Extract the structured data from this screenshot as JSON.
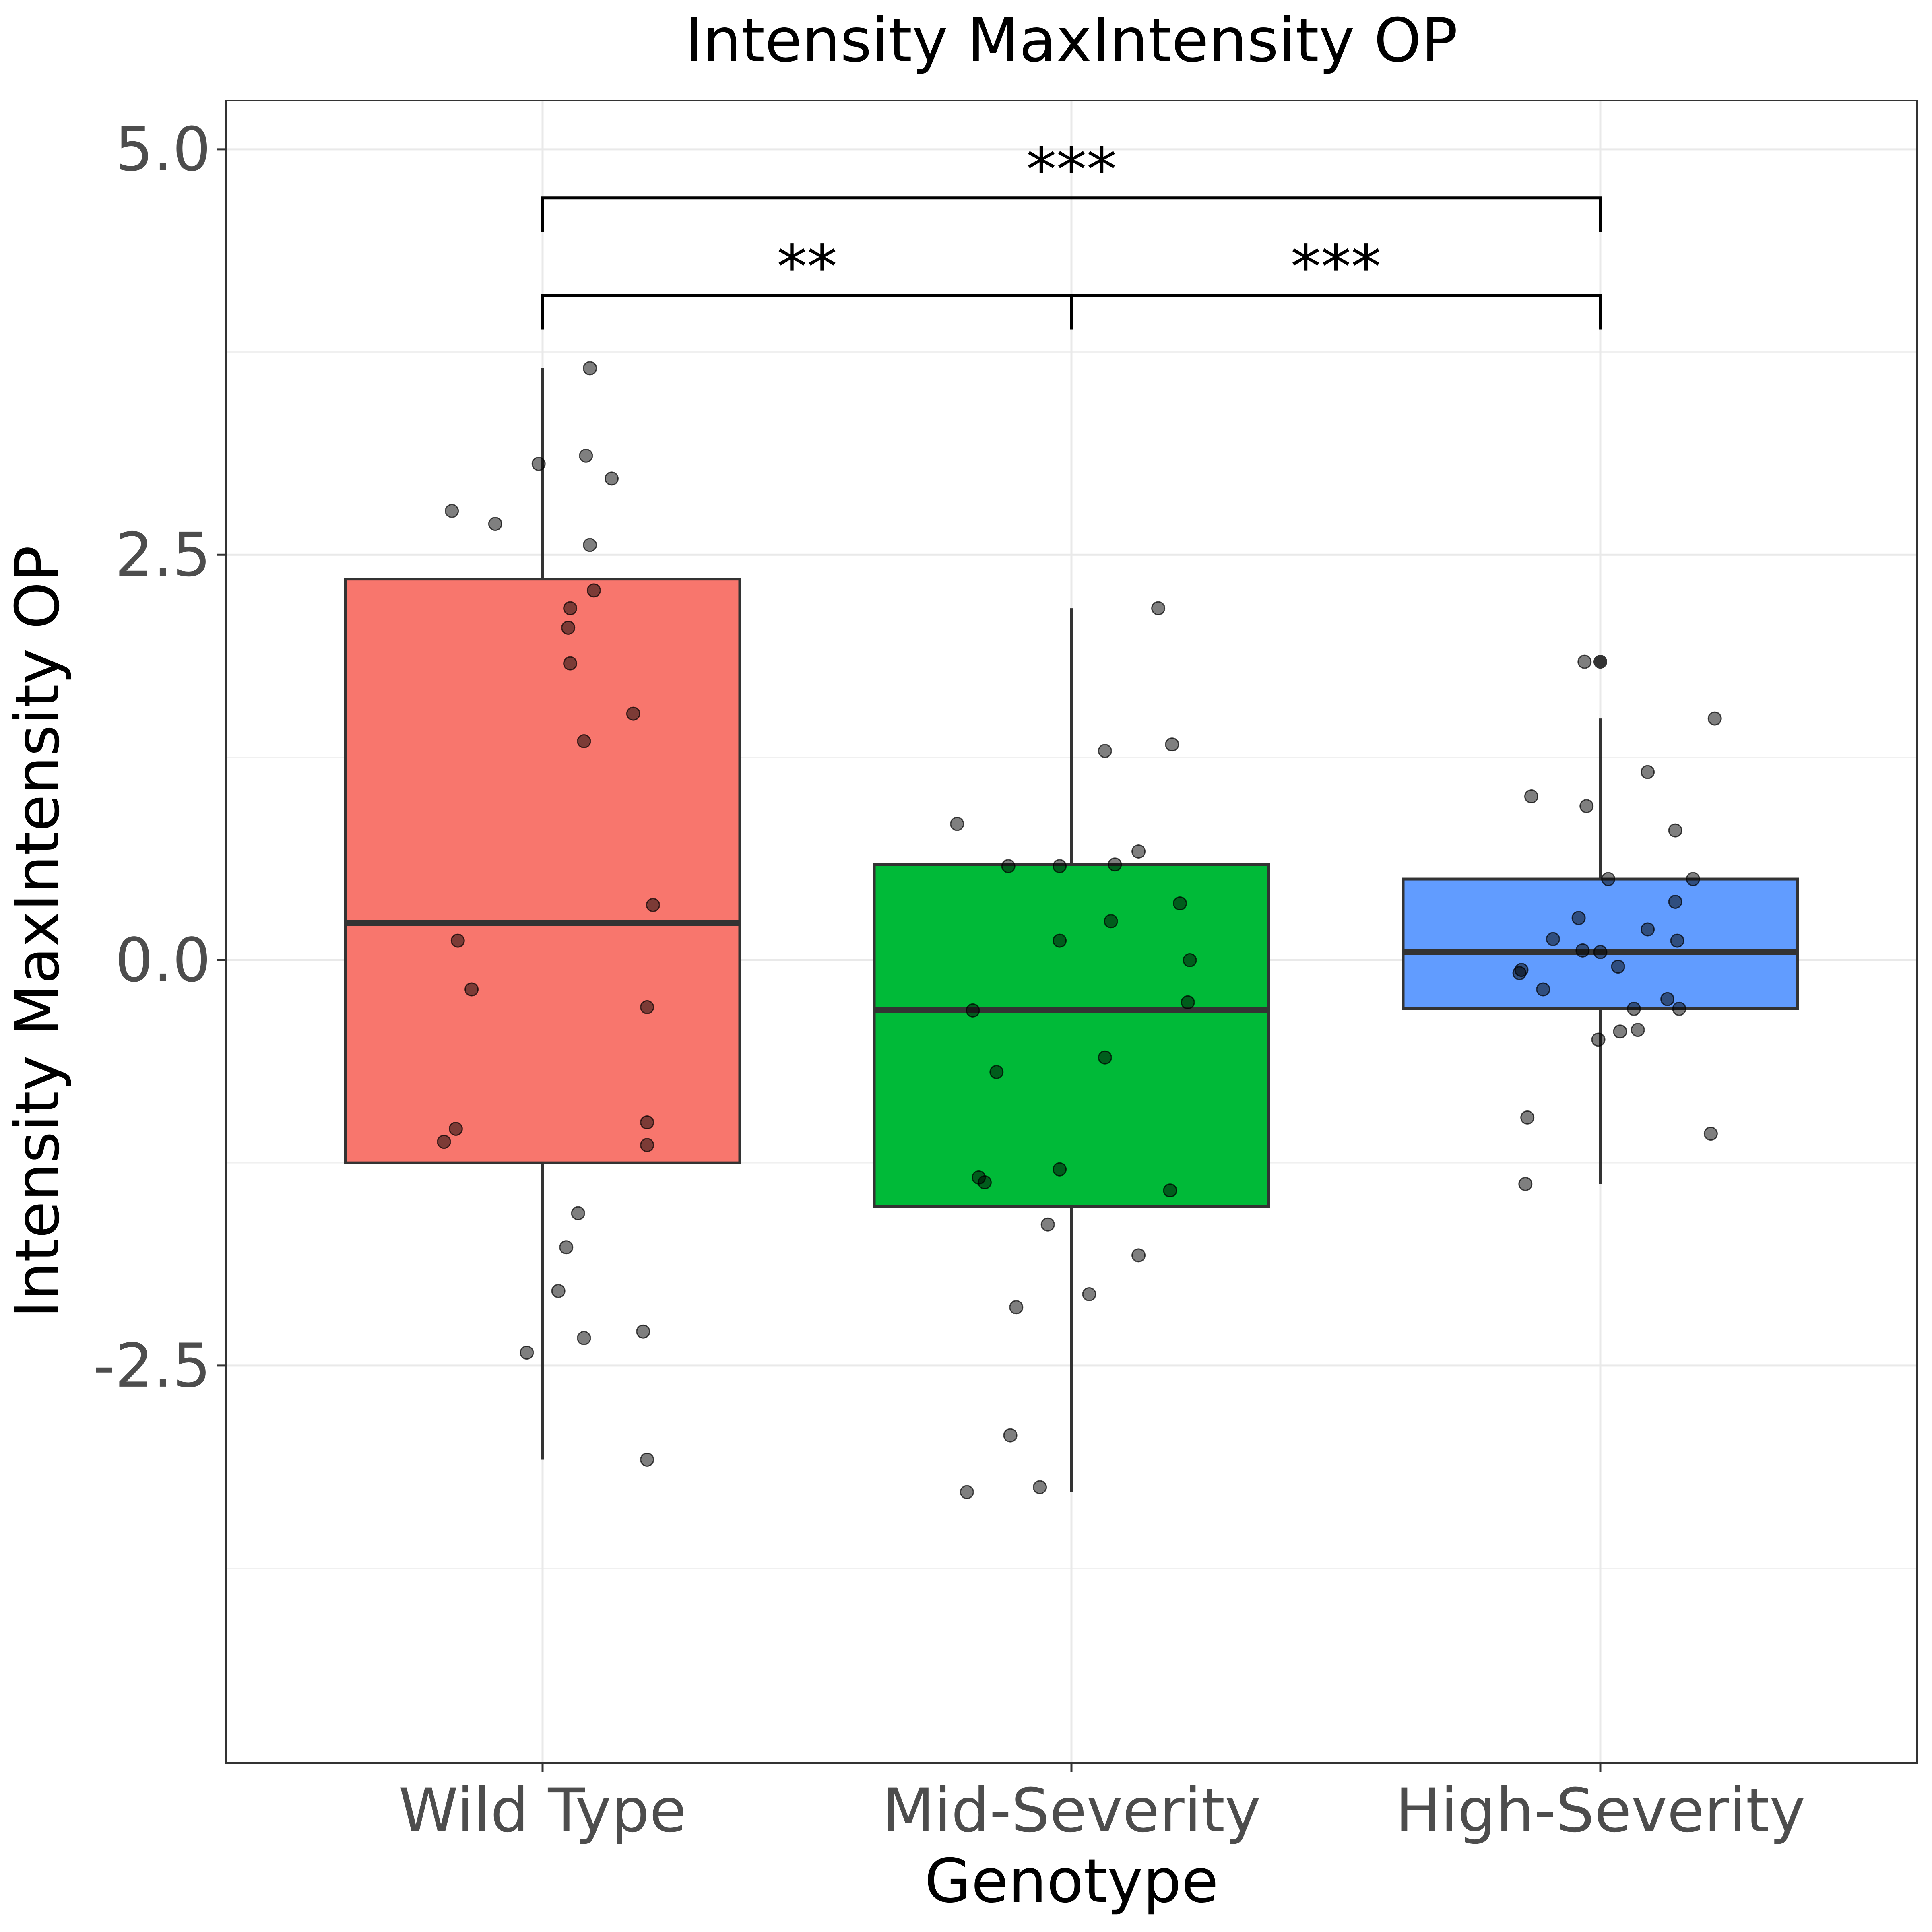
{
  "chart_data": {
    "type": "box",
    "title": "Intensity MaxIntensity OP",
    "xlabel": "Genotype",
    "ylabel": "Intensity MaxIntensity OP",
    "ylim": [
      -4.95,
      5.3
    ],
    "yticks": [
      -2.5,
      0.0,
      2.5,
      5.0
    ],
    "ytick_labels": [
      "-2.5",
      "0.0",
      "2.5",
      "5.0"
    ],
    "categories": [
      "Wild Type",
      "Mid-Severity",
      "High-Severity"
    ],
    "grid": true,
    "legend": "none",
    "box_stroke": "#333333",
    "point_color": "#000000",
    "boxes": [
      {
        "category": "Wild Type",
        "color": "#F8766D",
        "q1": -1.25,
        "median": 0.23,
        "q3": 2.35,
        "whisker_low": -3.08,
        "whisker_high": 3.65,
        "outliers": []
      },
      {
        "category": "Mid-Severity",
        "color": "#00BA38",
        "q1": -1.52,
        "median": -0.31,
        "q3": 0.59,
        "whisker_low": -3.28,
        "whisker_high": 2.17,
        "outliers": []
      },
      {
        "category": "High-Severity",
        "color": "#619CFF",
        "q1": -0.3,
        "median": 0.05,
        "q3": 0.5,
        "whisker_low": -1.38,
        "whisker_high": 1.49,
        "outliers": [
          1.84
        ]
      }
    ],
    "points": [
      {
        "group": 0,
        "dx": -0.23,
        "y": 2.77
      },
      {
        "group": 0,
        "dx": -0.12,
        "y": 2.69
      },
      {
        "group": 0,
        "dx": -0.01,
        "y": 3.06
      },
      {
        "group": 0,
        "dx": 0.11,
        "y": 3.11
      },
      {
        "group": 0,
        "dx": 0.12,
        "y": 3.65
      },
      {
        "group": 0,
        "dx": 0.175,
        "y": 2.97
      },
      {
        "group": 0,
        "dx": 0.12,
        "y": 2.56
      },
      {
        "group": 0,
        "dx": 0.07,
        "y": 2.17
      },
      {
        "group": 0,
        "dx": 0.13,
        "y": 2.28
      },
      {
        "group": 0,
        "dx": 0.065,
        "y": 2.05
      },
      {
        "group": 0,
        "dx": 0.07,
        "y": 1.83
      },
      {
        "group": 0,
        "dx": 0.23,
        "y": 1.52
      },
      {
        "group": 0,
        "dx": 0.105,
        "y": 1.35
      },
      {
        "group": 0,
        "dx": 0.28,
        "y": 0.34
      },
      {
        "group": 0,
        "dx": -0.215,
        "y": 0.12
      },
      {
        "group": 0,
        "dx": -0.18,
        "y": -0.18
      },
      {
        "group": 0,
        "dx": 0.265,
        "y": -0.29
      },
      {
        "group": 0,
        "dx": -0.22,
        "y": -1.04
      },
      {
        "group": 0,
        "dx": -0.25,
        "y": -1.12
      },
      {
        "group": 0,
        "dx": 0.265,
        "y": -1.0
      },
      {
        "group": 0,
        "dx": 0.265,
        "y": -1.14
      },
      {
        "group": 0,
        "dx": 0.09,
        "y": -1.56
      },
      {
        "group": 0,
        "dx": 0.06,
        "y": -1.77
      },
      {
        "group": 0,
        "dx": 0.04,
        "y": -2.04
      },
      {
        "group": 0,
        "dx": 0.105,
        "y": -2.33
      },
      {
        "group": 0,
        "dx": 0.255,
        "y": -2.29
      },
      {
        "group": 0,
        "dx": -0.04,
        "y": -2.42
      },
      {
        "group": 0,
        "dx": 0.265,
        "y": -3.08
      },
      {
        "group": 1,
        "dx": 0.22,
        "y": 2.17
      },
      {
        "group": 1,
        "dx": 0.255,
        "y": 1.33
      },
      {
        "group": 1,
        "dx": 0.085,
        "y": 1.29
      },
      {
        "group": 1,
        "dx": -0.29,
        "y": 0.84
      },
      {
        "group": 1,
        "dx": 0.17,
        "y": 0.67
      },
      {
        "group": 1,
        "dx": -0.16,
        "y": 0.58
      },
      {
        "group": 1,
        "dx": -0.03,
        "y": 0.58
      },
      {
        "group": 1,
        "dx": 0.11,
        "y": 0.59
      },
      {
        "group": 1,
        "dx": 0.275,
        "y": 0.35
      },
      {
        "group": 1,
        "dx": 0.1,
        "y": 0.24
      },
      {
        "group": 1,
        "dx": -0.03,
        "y": 0.12
      },
      {
        "group": 1,
        "dx": 0.3,
        "y": 0.0
      },
      {
        "group": 1,
        "dx": 0.295,
        "y": -0.26
      },
      {
        "group": 1,
        "dx": -0.25,
        "y": -0.31
      },
      {
        "group": 1,
        "dx": 0.085,
        "y": -0.6
      },
      {
        "group": 1,
        "dx": -0.19,
        "y": -0.69
      },
      {
        "group": 1,
        "dx": -0.03,
        "y": -1.29
      },
      {
        "group": 1,
        "dx": -0.235,
        "y": -1.34
      },
      {
        "group": 1,
        "dx": -0.22,
        "y": -1.37
      },
      {
        "group": 1,
        "dx": 0.25,
        "y": -1.42
      },
      {
        "group": 1,
        "dx": -0.06,
        "y": -1.63
      },
      {
        "group": 1,
        "dx": 0.17,
        "y": -1.82
      },
      {
        "group": 1,
        "dx": 0.045,
        "y": -2.06
      },
      {
        "group": 1,
        "dx": -0.14,
        "y": -2.14
      },
      {
        "group": 1,
        "dx": -0.155,
        "y": -2.93
      },
      {
        "group": 1,
        "dx": -0.08,
        "y": -3.25
      },
      {
        "group": 1,
        "dx": -0.265,
        "y": -3.28
      },
      {
        "group": 2,
        "dx": -0.04,
        "y": 1.84
      },
      {
        "group": 2,
        "dx": 0.29,
        "y": 1.49
      },
      {
        "group": 2,
        "dx": 0.12,
        "y": 1.16
      },
      {
        "group": 2,
        "dx": -0.175,
        "y": 1.01
      },
      {
        "group": 2,
        "dx": -0.035,
        "y": 0.95
      },
      {
        "group": 2,
        "dx": 0.19,
        "y": 0.8
      },
      {
        "group": 2,
        "dx": 0.235,
        "y": 0.5
      },
      {
        "group": 2,
        "dx": 0.02,
        "y": 0.5
      },
      {
        "group": 2,
        "dx": 0.19,
        "y": 0.36
      },
      {
        "group": 2,
        "dx": -0.055,
        "y": 0.26
      },
      {
        "group": 2,
        "dx": 0.12,
        "y": 0.19
      },
      {
        "group": 2,
        "dx": -0.12,
        "y": 0.13
      },
      {
        "group": 2,
        "dx": 0.195,
        "y": 0.12
      },
      {
        "group": 2,
        "dx": -0.045,
        "y": 0.06
      },
      {
        "group": 2,
        "dx": 0.0,
        "y": 0.05
      },
      {
        "group": 2,
        "dx": 0.045,
        "y": -0.04
      },
      {
        "group": 2,
        "dx": -0.2,
        "y": -0.06
      },
      {
        "group": 2,
        "dx": -0.205,
        "y": -0.08
      },
      {
        "group": 2,
        "dx": -0.145,
        "y": -0.18
      },
      {
        "group": 2,
        "dx": 0.17,
        "y": -0.24
      },
      {
        "group": 2,
        "dx": 0.085,
        "y": -0.3
      },
      {
        "group": 2,
        "dx": 0.2,
        "y": -0.3
      },
      {
        "group": 2,
        "dx": 0.095,
        "y": -0.43
      },
      {
        "group": 2,
        "dx": 0.05,
        "y": -0.44
      },
      {
        "group": 2,
        "dx": -0.005,
        "y": -0.49
      },
      {
        "group": 2,
        "dx": -0.185,
        "y": -0.97
      },
      {
        "group": 2,
        "dx": 0.28,
        "y": -1.07
      },
      {
        "group": 2,
        "dx": -0.19,
        "y": -1.38
      }
    ],
    "significance": [
      {
        "from": 0,
        "to": 1,
        "label": "**",
        "y": 4.1
      },
      {
        "from": 1,
        "to": 2,
        "label": "***",
        "y": 4.1
      },
      {
        "from": 0,
        "to": 2,
        "label": "***",
        "y": 4.7
      }
    ]
  }
}
